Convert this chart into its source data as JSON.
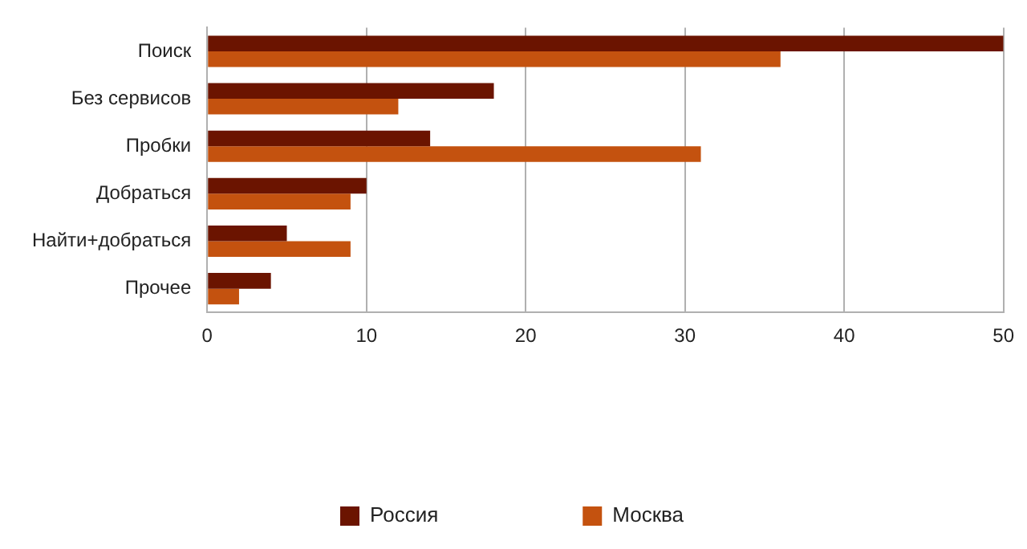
{
  "chart_data": {
    "type": "bar",
    "orientation": "horizontal",
    "categories": [
      "Поиск",
      "Без сервисов",
      "Пробки",
      "Добраться",
      "Найти+добраться",
      "Прочее"
    ],
    "series": [
      {
        "name": "Россия",
        "color": "#6b1400",
        "values": [
          50,
          18,
          14,
          10,
          5,
          4
        ]
      },
      {
        "name": "Москва",
        "color": "#c4520f",
        "values": [
          36,
          12,
          31,
          9,
          9,
          2
        ]
      }
    ],
    "xlim": [
      0,
      50
    ],
    "xticks": [
      0,
      10,
      20,
      30,
      40,
      50
    ],
    "grid": "x",
    "legend": "bottom"
  }
}
